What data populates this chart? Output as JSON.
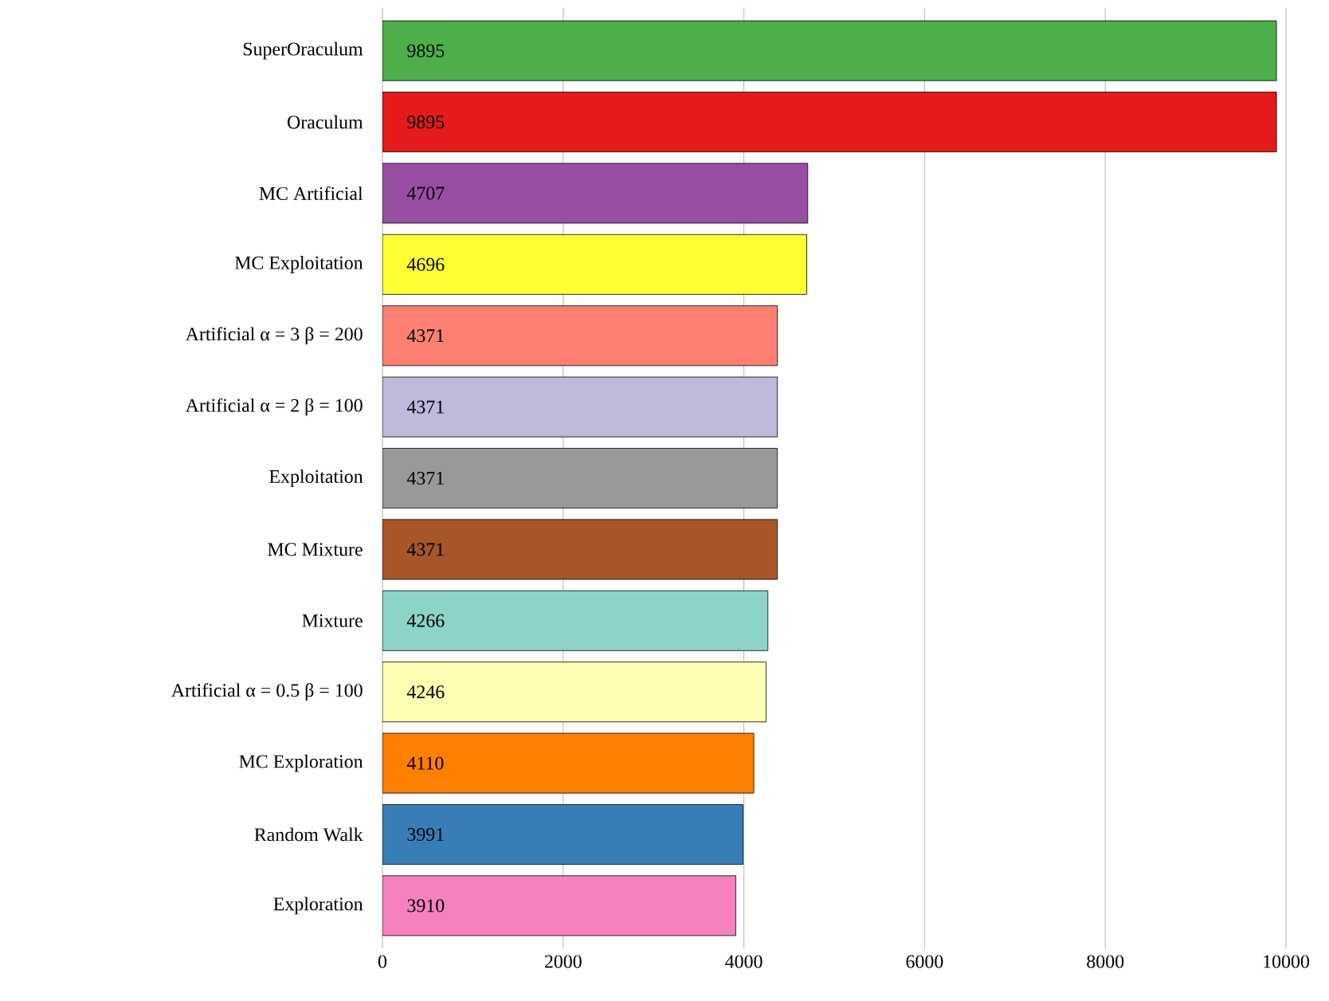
{
  "chart_data": {
    "type": "bar",
    "orientation": "horizontal",
    "categories": [
      "SuperOraculum",
      "Oraculum",
      "MC Artificial",
      "MC Exploitation",
      "Artificial α = 3 β = 200",
      "Artificial α = 2 β = 100",
      "Exploitation",
      "MC Mixture",
      "Mixture",
      "Artificial α = 0.5 β = 100",
      "MC Exploration",
      "Random Walk",
      "Exploration"
    ],
    "values": [
      9895,
      9895,
      4707,
      4696,
      4371,
      4371,
      4371,
      4371,
      4266,
      4246,
      4110,
      3991,
      3910
    ],
    "colors": [
      "#4daf4a",
      "#e41a1c",
      "#984ea3",
      "#ffff33",
      "#fb8072",
      "#bebada",
      "#999999",
      "#a65628",
      "#8dd3c7",
      "#ffffb3",
      "#ff7f00",
      "#377eb8",
      "#f781bf"
    ],
    "xlim": [
      0,
      10000
    ],
    "xticks": [
      0,
      2000,
      4000,
      6000,
      8000,
      10000
    ],
    "grid": "x",
    "data_labels": true
  }
}
